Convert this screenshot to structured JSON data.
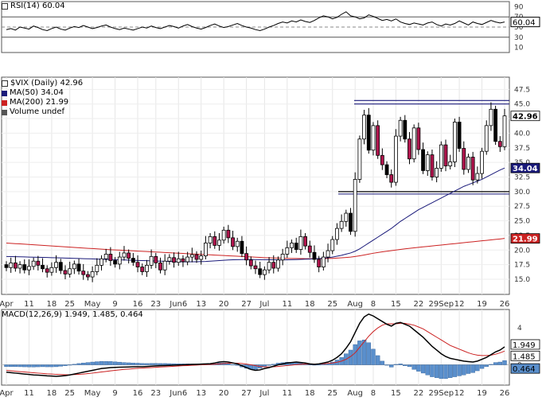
{
  "chart_data": [
    {
      "id": "rsi",
      "type": "line",
      "title": "RSI(14) 60.04",
      "ylim": [
        0,
        100
      ],
      "y_ticks": [
        90,
        70,
        50,
        30,
        10
      ],
      "reference_lines": [
        70,
        50,
        30
      ],
      "current_value_label": "60.04",
      "series": [
        {
          "name": "RSI(14)",
          "color": "#000000",
          "values": [
            45,
            47,
            44,
            50,
            48,
            46,
            52,
            49,
            45,
            43,
            47,
            50,
            46,
            44,
            48,
            51,
            49,
            53,
            50,
            47,
            49,
            52,
            54,
            50,
            47,
            45,
            48,
            46,
            44,
            47,
            50,
            48,
            52,
            49,
            47,
            50,
            53,
            51,
            48,
            52,
            55,
            51,
            48,
            46,
            49,
            53,
            56,
            52,
            49,
            51,
            54,
            57,
            53,
            50,
            48,
            45,
            43,
            46,
            50,
            53,
            57,
            60,
            58,
            62,
            60,
            64,
            61,
            59,
            63,
            68,
            72,
            70,
            66,
            69,
            75,
            80,
            72,
            70,
            66,
            68,
            74,
            71,
            67,
            63,
            65,
            62,
            66,
            60,
            57,
            55,
            58,
            56,
            54,
            58,
            60,
            55,
            52,
            56,
            54,
            57,
            62,
            58,
            54,
            60,
            57,
            55,
            59,
            63,
            60,
            58,
            60
          ]
        }
      ]
    },
    {
      "id": "price",
      "type": "candlestick",
      "title": "$VIX (Daily) 42.96",
      "ylim": [
        13.5,
        48.5
      ],
      "y_ticks": [
        "47.5",
        "45.0",
        "42.5",
        "40.0",
        "37.5",
        "35.0",
        "32.5",
        "30.0",
        "27.5",
        "25.0",
        "22.5",
        "20.0",
        "17.5",
        "15.0"
      ],
      "x_labels": [
        "Apr",
        "11",
        "18",
        "25",
        "May",
        "9",
        "16",
        "23",
        "Jun6",
        "13",
        "20",
        "27",
        "Jul",
        "11",
        "18",
        "25",
        "Aug",
        "8",
        "15",
        "22",
        "29Sep",
        "12",
        "19",
        "26"
      ],
      "current_value_label": "42.96",
      "ma50_label": "34.04",
      "ma200_label": "21.99",
      "support_level": 30.0,
      "resistance_levels": [
        45.0,
        45.6
      ],
      "legend": [
        {
          "label": "$VIX (Daily) 42.96",
          "color": "#000000"
        },
        {
          "label": "MA(50) 34.04",
          "color": "#1a1a7a"
        },
        {
          "label": "MA(200) 21.99",
          "color": "#cc2222"
        },
        {
          "label": "Volume undef",
          "color": "#555555"
        }
      ],
      "close": [
        17.0,
        17.8,
        16.9,
        17.5,
        16.6,
        17.2,
        18.1,
        17.4,
        16.8,
        16.2,
        17.0,
        17.9,
        16.5,
        15.9,
        16.8,
        17.6,
        16.4,
        15.8,
        15.4,
        16.3,
        17.4,
        18.5,
        19.3,
        18.2,
        17.6,
        18.8,
        19.5,
        18.6,
        17.9,
        17.1,
        16.3,
        17.4,
        18.9,
        17.8,
        16.6,
        18.1,
        18.7,
        17.9,
        18.5,
        18.0,
        18.8,
        19.2,
        18.4,
        19.0,
        21.2,
        22.3,
        20.8,
        21.7,
        23.4,
        22.1,
        20.6,
        21.5,
        19.4,
        18.3,
        17.3,
        16.8,
        15.8,
        16.6,
        17.9,
        16.9,
        18.3,
        19.3,
        20.4,
        21.2,
        20.1,
        22.3,
        20.7,
        19.6,
        18.4,
        17.1,
        18.8,
        19.9,
        21.8,
        23.7,
        24.9,
        26.3,
        23.2,
        32.1,
        39.0,
        43.1,
        37.1,
        41.3,
        36.2,
        34.6,
        32.9,
        31.6,
        39.5,
        42.2,
        39.0,
        35.6,
        40.9,
        37.2,
        33.6,
        36.3,
        32.5,
        34.0,
        38.0,
        34.4,
        35.1,
        41.9,
        37.4,
        33.8,
        35.9,
        32.0,
        33.1,
        36.9,
        41.3,
        44.1,
        38.6,
        37.7,
        42.96
      ],
      "open": [
        17.5,
        17.0,
        17.8,
        16.9,
        17.5,
        16.6,
        17.2,
        18.1,
        17.4,
        16.8,
        16.2,
        17.0,
        17.9,
        16.5,
        15.9,
        16.8,
        17.6,
        16.4,
        15.8,
        15.4,
        16.3,
        17.4,
        18.5,
        19.3,
        18.2,
        17.6,
        18.8,
        19.5,
        18.6,
        17.9,
        17.1,
        16.3,
        17.4,
        18.9,
        17.8,
        16.6,
        18.1,
        18.7,
        17.9,
        18.5,
        18.0,
        18.8,
        19.2,
        18.4,
        19.0,
        21.2,
        22.3,
        20.8,
        21.7,
        23.4,
        22.1,
        20.6,
        21.5,
        19.4,
        18.3,
        17.3,
        16.8,
        15.8,
        16.6,
        17.9,
        16.9,
        18.3,
        19.3,
        20.4,
        21.2,
        20.1,
        22.3,
        20.7,
        19.6,
        18.4,
        17.1,
        18.8,
        19.9,
        21.8,
        23.7,
        24.9,
        26.3,
        23.2,
        32.1,
        39.0,
        43.1,
        37.1,
        41.3,
        36.2,
        34.6,
        32.9,
        31.6,
        39.5,
        42.2,
        39.0,
        35.6,
        40.9,
        37.2,
        33.6,
        36.3,
        32.5,
        34.0,
        38.0,
        34.4,
        35.1,
        41.9,
        37.4,
        33.8,
        35.9,
        32.0,
        33.1,
        36.9,
        41.3,
        44.1,
        38.6,
        37.7
      ],
      "ma50": [
        18.9,
        18.88,
        18.86,
        18.84,
        18.82,
        18.8,
        18.78,
        18.76,
        18.74,
        18.72,
        18.7,
        18.68,
        18.65,
        18.62,
        18.6,
        18.58,
        18.55,
        18.52,
        18.5,
        18.48,
        18.45,
        18.42,
        18.4,
        18.38,
        18.35,
        18.32,
        18.3,
        18.28,
        18.25,
        18.22,
        18.2,
        18.18,
        18.15,
        18.12,
        18.1,
        18.08,
        18.05,
        18.02,
        18.0,
        17.98,
        17.98,
        17.99,
        18.0,
        18.02,
        18.05,
        18.1,
        18.15,
        18.2,
        18.25,
        18.3,
        18.33,
        18.35,
        18.37,
        18.38,
        18.38,
        18.37,
        18.36,
        18.35,
        18.34,
        18.33,
        18.32,
        18.32,
        18.33,
        18.35,
        18.37,
        18.4,
        18.43,
        18.46,
        18.5,
        18.55,
        18.6,
        18.7,
        18.8,
        18.95,
        19.1,
        19.3,
        19.5,
        19.8,
        20.2,
        20.7,
        21.2,
        21.7,
        22.2,
        22.7,
        23.2,
        23.7,
        24.3,
        24.9,
        25.4,
        25.9,
        26.4,
        26.9,
        27.3,
        27.7,
        28.1,
        28.5,
        28.9,
        29.3,
        29.7,
        30.1,
        30.5,
        30.9,
        31.2,
        31.5,
        31.8,
        32.1,
        32.5,
        32.9,
        33.3,
        33.7,
        34.04
      ],
      "ma200": [
        21.2,
        21.15,
        21.1,
        21.05,
        21.0,
        20.95,
        20.9,
        20.85,
        20.8,
        20.75,
        20.7,
        20.65,
        20.6,
        20.55,
        20.5,
        20.45,
        20.4,
        20.35,
        20.3,
        20.25,
        20.2,
        20.15,
        20.1,
        20.06,
        20.02,
        19.98,
        19.94,
        19.9,
        19.86,
        19.82,
        19.78,
        19.74,
        19.7,
        19.66,
        19.62,
        19.58,
        19.54,
        19.5,
        19.46,
        19.42,
        19.38,
        19.34,
        19.3,
        19.26,
        19.22,
        19.18,
        19.14,
        19.1,
        19.06,
        19.02,
        18.98,
        18.94,
        18.9,
        18.86,
        18.82,
        18.78,
        18.74,
        18.7,
        18.67,
        18.64,
        18.62,
        18.6,
        18.58,
        18.56,
        18.55,
        18.54,
        18.53,
        18.52,
        18.52,
        18.52,
        18.53,
        18.55,
        18.58,
        18.62,
        18.67,
        18.73,
        18.8,
        18.9,
        19.02,
        19.15,
        19.3,
        19.45,
        19.58,
        19.7,
        19.8,
        19.9,
        20.0,
        20.1,
        20.2,
        20.3,
        20.38,
        20.46,
        20.54,
        20.62,
        20.7,
        20.78,
        20.86,
        20.94,
        21.02,
        21.1,
        21.18,
        21.26,
        21.34,
        21.42,
        21.5,
        21.58,
        21.66,
        21.74,
        21.82,
        21.9,
        21.99
      ]
    },
    {
      "id": "macd",
      "type": "line+histogram",
      "title": "MACD(12,26,9) 1.949, 1.485, 0.464",
      "ylim": [
        -2.2,
        6.0
      ],
      "y_ticks": [
        4,
        0
      ],
      "value_labels": [
        "1.949",
        "1.485",
        "0.464"
      ],
      "x_labels": [
        "Apr",
        "11",
        "18",
        "25",
        "May",
        "9",
        "16",
        "23",
        "Jun6",
        "13",
        "20",
        "27",
        "Jul",
        "11",
        "18",
        "25",
        "Aug",
        "8",
        "15",
        "22",
        "29Sep",
        "12",
        "19",
        "26"
      ],
      "series": [
        {
          "name": "MACD",
          "color": "#000000",
          "value_label": "1.949",
          "values": [
            -0.8,
            -0.85,
            -0.9,
            -0.95,
            -1.0,
            -1.05,
            -1.1,
            -1.12,
            -1.15,
            -1.2,
            -1.22,
            -1.25,
            -1.22,
            -1.18,
            -1.1,
            -1.0,
            -0.9,
            -0.8,
            -0.7,
            -0.6,
            -0.5,
            -0.4,
            -0.35,
            -0.3,
            -0.28,
            -0.26,
            -0.25,
            -0.24,
            -0.22,
            -0.2,
            -0.2,
            -0.18,
            -0.15,
            -0.12,
            -0.1,
            -0.08,
            -0.06,
            -0.04,
            -0.02,
            0.0,
            0.02,
            0.04,
            0.06,
            0.08,
            0.1,
            0.12,
            0.2,
            0.3,
            0.35,
            0.3,
            0.2,
            0.1,
            -0.1,
            -0.3,
            -0.5,
            -0.6,
            -0.55,
            -0.4,
            -0.3,
            -0.15,
            0.0,
            0.1,
            0.2,
            0.25,
            0.3,
            0.25,
            0.2,
            0.1,
            0.05,
            0.1,
            0.2,
            0.3,
            0.5,
            0.8,
            1.2,
            1.8,
            2.5,
            3.5,
            4.5,
            5.2,
            5.5,
            5.3,
            5.0,
            4.7,
            4.4,
            4.2,
            4.5,
            4.6,
            4.4,
            4.2,
            3.8,
            3.4,
            3.0,
            2.5,
            2.0,
            1.6,
            1.2,
            0.9,
            0.7,
            0.6,
            0.5,
            0.4,
            0.35,
            0.3,
            0.4,
            0.6,
            0.8,
            1.1,
            1.4,
            1.6,
            1.949
          ]
        },
        {
          "name": "Signal",
          "color": "#cc2222",
          "value_label": "1.485",
          "values": [
            -0.6,
            -0.65,
            -0.7,
            -0.74,
            -0.78,
            -0.82,
            -0.86,
            -0.9,
            -0.94,
            -0.98,
            -1.0,
            -1.04,
            -1.06,
            -1.08,
            -1.08,
            -1.06,
            -1.04,
            -1.0,
            -0.95,
            -0.9,
            -0.84,
            -0.78,
            -0.72,
            -0.66,
            -0.6,
            -0.55,
            -0.5,
            -0.46,
            -0.42,
            -0.38,
            -0.35,
            -0.32,
            -0.3,
            -0.27,
            -0.24,
            -0.22,
            -0.19,
            -0.16,
            -0.13,
            -0.1,
            -0.08,
            -0.05,
            -0.03,
            0.0,
            0.02,
            0.04,
            0.07,
            0.1,
            0.14,
            0.17,
            0.18,
            0.17,
            0.14,
            0.08,
            0.0,
            -0.1,
            -0.18,
            -0.22,
            -0.24,
            -0.22,
            -0.18,
            -0.13,
            -0.08,
            -0.03,
            0.02,
            0.06,
            0.08,
            0.08,
            0.08,
            0.09,
            0.11,
            0.15,
            0.2,
            0.28,
            0.4,
            0.6,
            0.9,
            1.3,
            1.9,
            2.5,
            3.1,
            3.6,
            4.0,
            4.3,
            4.45,
            4.45,
            4.45,
            4.5,
            4.5,
            4.4,
            4.3,
            4.1,
            3.9,
            3.6,
            3.3,
            3.0,
            2.7,
            2.4,
            2.1,
            1.9,
            1.7,
            1.5,
            1.3,
            1.15,
            1.05,
            1.0,
            1.0,
            1.05,
            1.15,
            1.3,
            1.485
          ]
        },
        {
          "name": "Histogram",
          "color": "#5a8fcc",
          "value_label": "0.464",
          "values": [
            -0.2,
            -0.2,
            -0.2,
            -0.21,
            -0.22,
            -0.23,
            -0.24,
            -0.22,
            -0.21,
            -0.22,
            -0.22,
            -0.21,
            -0.16,
            -0.1,
            -0.02,
            0.06,
            0.14,
            0.2,
            0.25,
            0.3,
            0.34,
            0.38,
            0.37,
            0.36,
            0.32,
            0.29,
            0.25,
            0.22,
            0.2,
            0.18,
            0.15,
            0.14,
            0.15,
            0.15,
            0.14,
            0.14,
            0.13,
            0.12,
            0.11,
            0.1,
            0.1,
            0.09,
            0.09,
            0.08,
            0.08,
            0.08,
            0.13,
            0.2,
            0.21,
            0.13,
            0.02,
            -0.07,
            -0.24,
            -0.38,
            -0.5,
            -0.5,
            -0.37,
            -0.18,
            -0.06,
            0.07,
            0.18,
            0.23,
            0.28,
            0.28,
            0.28,
            0.19,
            0.12,
            0.02,
            -0.03,
            0.01,
            0.09,
            0.15,
            0.3,
            0.52,
            0.8,
            1.2,
            1.6,
            2.2,
            2.6,
            2.7,
            2.4,
            1.7,
            1.0,
            0.4,
            -0.05,
            -0.25,
            0.05,
            0.1,
            -0.1,
            -0.2,
            -0.5,
            -0.7,
            -0.9,
            -1.1,
            -1.3,
            -1.4,
            -1.5,
            -1.5,
            -1.4,
            -1.3,
            -1.2,
            -1.1,
            -0.95,
            -0.85,
            -0.65,
            -0.4,
            -0.2,
            0.05,
            0.25,
            0.3,
            0.464
          ]
        }
      ]
    }
  ]
}
